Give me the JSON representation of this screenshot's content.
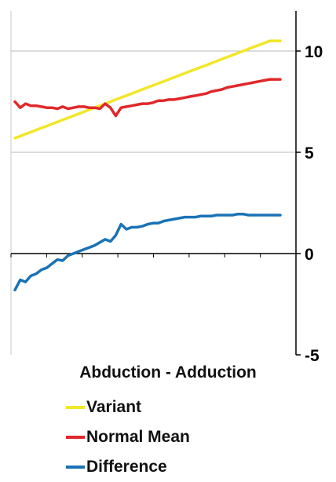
{
  "chart_data": {
    "type": "line",
    "title": "Abduction - Adduction",
    "xlabel": "",
    "ylabel": "",
    "ylim": [
      -5,
      12
    ],
    "y_ticks": [
      10,
      5,
      0,
      -5
    ],
    "y_axis_position": "right",
    "grid": "horizontal",
    "legend_placement": "bottom",
    "x": [
      0,
      1,
      2,
      3,
      4,
      5,
      6,
      7,
      8,
      9,
      10,
      11,
      12,
      13,
      14,
      15,
      16,
      17,
      18,
      19,
      20,
      21,
      22,
      23,
      24,
      25,
      26,
      27,
      28,
      29,
      30,
      31,
      32,
      33,
      34,
      35,
      36,
      37,
      38,
      39,
      40,
      41,
      42,
      43,
      44,
      45,
      46,
      47,
      48,
      49,
      50
    ],
    "series": [
      {
        "name": "Variant",
        "color": "#f2e627",
        "values": [
          5.7,
          5.8,
          5.9,
          6.0,
          6.1,
          6.2,
          6.3,
          6.4,
          6.5,
          6.6,
          6.7,
          6.8,
          6.9,
          7.0,
          7.1,
          7.2,
          7.3,
          7.4,
          7.5,
          7.6,
          7.7,
          7.8,
          7.9,
          8.0,
          8.1,
          8.2,
          8.3,
          8.4,
          8.5,
          8.6,
          8.7,
          8.8,
          8.9,
          9.0,
          9.1,
          9.2,
          9.3,
          9.4,
          9.5,
          9.6,
          9.7,
          9.8,
          9.9,
          10.0,
          10.1,
          10.2,
          10.3,
          10.4,
          10.5,
          10.5,
          10.5
        ]
      },
      {
        "name": "Normal Mean",
        "color": "#e0282a",
        "values": [
          7.5,
          7.2,
          7.4,
          7.3,
          7.3,
          7.25,
          7.2,
          7.2,
          7.15,
          7.25,
          7.15,
          7.2,
          7.25,
          7.25,
          7.2,
          7.2,
          7.15,
          7.4,
          7.2,
          6.8,
          7.2,
          7.25,
          7.3,
          7.35,
          7.4,
          7.4,
          7.45,
          7.55,
          7.55,
          7.6,
          7.6,
          7.65,
          7.7,
          7.75,
          7.8,
          7.85,
          7.9,
          8.0,
          8.05,
          8.1,
          8.2,
          8.25,
          8.3,
          8.35,
          8.4,
          8.45,
          8.5,
          8.55,
          8.6,
          8.6,
          8.6
        ]
      },
      {
        "name": "Difference",
        "color": "#1a73b5",
        "values": [
          -1.8,
          -1.3,
          -1.4,
          -1.1,
          -1.0,
          -0.8,
          -0.7,
          -0.5,
          -0.3,
          -0.35,
          -0.1,
          0.0,
          0.1,
          0.2,
          0.3,
          0.4,
          0.55,
          0.7,
          0.6,
          0.9,
          1.45,
          1.2,
          1.3,
          1.3,
          1.35,
          1.45,
          1.5,
          1.5,
          1.6,
          1.65,
          1.7,
          1.75,
          1.8,
          1.8,
          1.8,
          1.85,
          1.85,
          1.85,
          1.9,
          1.9,
          1.9,
          1.9,
          1.95,
          1.95,
          1.9,
          1.9,
          1.9,
          1.9,
          1.9,
          1.9,
          1.9
        ]
      }
    ]
  }
}
